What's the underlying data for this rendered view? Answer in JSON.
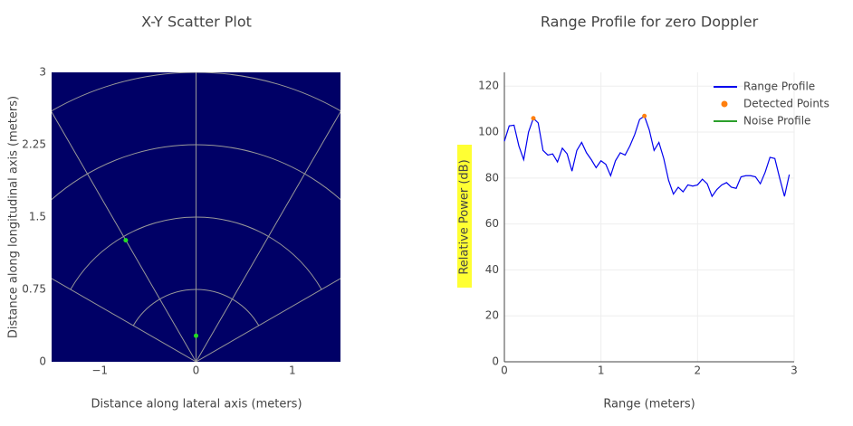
{
  "chart_data": [
    {
      "type": "scatter",
      "title": "X-Y Scatter Plot",
      "x_label": "Distance along lateral axis (meters)",
      "y_label": "Distance along longitudinal axis (meters)",
      "xlim": [
        -1.5,
        1.5
      ],
      "ylim": [
        0,
        3
      ],
      "xticks": [
        {
          "value": -1,
          "label": "−1"
        },
        0,
        1
      ],
      "yticks": [
        0,
        0.75,
        1.5,
        2.25,
        3
      ],
      "plot_bg": "#000066",
      "polar_grid": true,
      "series": [
        {
          "color": "#22dd22",
          "x": [
            -0.73,
            0
          ],
          "values": [
            1.26,
            0.27
          ]
        }
      ]
    },
    {
      "type": "line",
      "title": "Range Profile for zero Doppler",
      "x_label": "Range (meters)",
      "y_label": "Relative Power (dB)",
      "xlim": [
        0,
        3
      ],
      "ylim": [
        0,
        126
      ],
      "xticks": [
        0,
        1,
        2,
        3
      ],
      "yticks": [
        0,
        20,
        40,
        60,
        80,
        100,
        120
      ],
      "grid": true,
      "series": [
        {
          "name": "Range Profile",
          "color": "#0000ee",
          "mode": "lines",
          "x": [
            0,
            0.05,
            0.1,
            0.15,
            0.2,
            0.25,
            0.3,
            0.35,
            0.4,
            0.45,
            0.5,
            0.55,
            0.6,
            0.65,
            0.7,
            0.75,
            0.8,
            0.85,
            0.9,
            0.95,
            1,
            1.05,
            1.1,
            1.15,
            1.2,
            1.25,
            1.3,
            1.35,
            1.4,
            1.45,
            1.5,
            1.55,
            1.6,
            1.65,
            1.7,
            1.75,
            1.8,
            1.85,
            1.9,
            1.95,
            2,
            2.05,
            2.1,
            2.15,
            2.2,
            2.25,
            2.3,
            2.35,
            2.4,
            2.45,
            2.5,
            2.55,
            2.6,
            2.65,
            2.7,
            2.75,
            2.8,
            2.85,
            2.9,
            2.95
          ],
          "values": [
            96,
            102.7,
            103,
            94,
            88,
            100,
            106,
            104,
            92,
            90,
            90.5,
            87,
            93,
            90.5,
            83,
            92,
            95.5,
            91,
            88,
            84.5,
            87.5,
            86,
            81,
            87.5,
            91,
            90,
            94,
            99,
            105.5,
            107,
            101,
            92,
            95.5,
            88.5,
            79,
            73,
            76,
            74,
            77,
            76.5,
            77,
            79.5,
            77.5,
            72,
            75,
            77,
            78,
            76,
            75.5,
            80.5,
            81,
            81,
            80.5,
            77.5,
            82.5,
            89,
            88.5,
            80,
            72,
            81.5
          ]
        },
        {
          "name": "Detected Points",
          "color": "#ff7f0e",
          "mode": "markers",
          "x": [
            0.3,
            1.45
          ],
          "values": [
            106,
            107
          ]
        },
        {
          "name": "Noise Profile",
          "color": "#2ca02c",
          "mode": "lines",
          "x": [],
          "values": []
        }
      ]
    }
  ]
}
